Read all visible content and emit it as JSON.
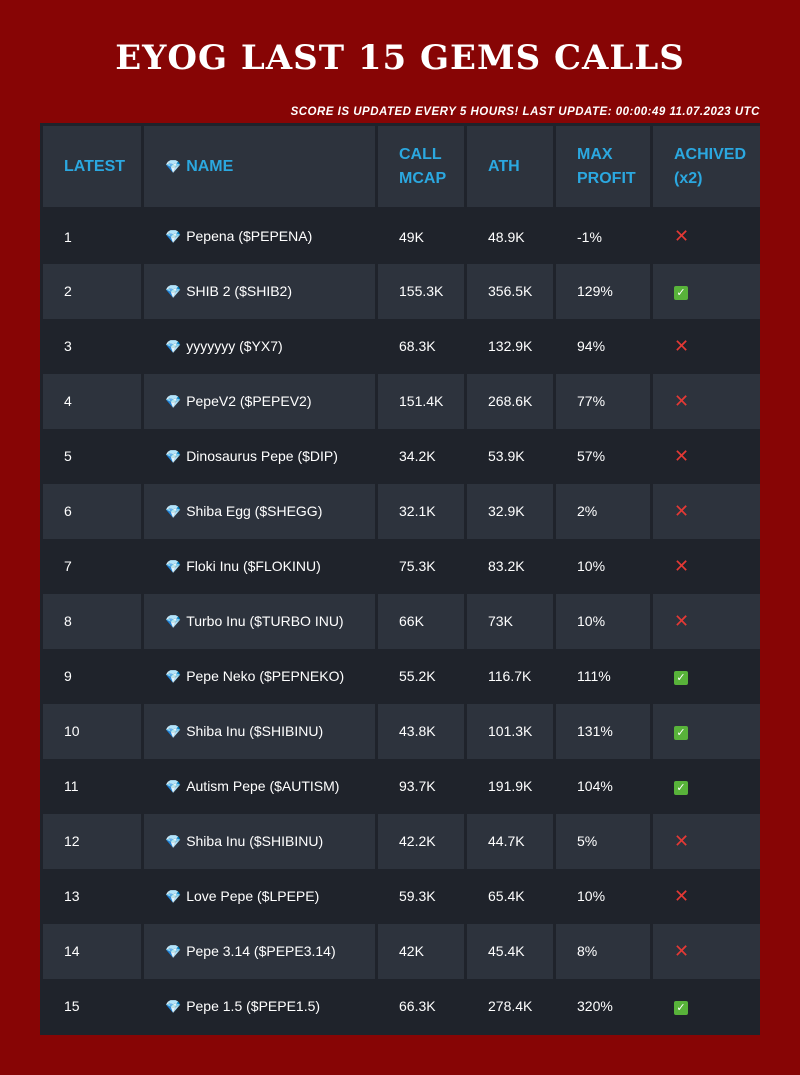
{
  "title": "EYOG LAST 15 GEMS CALLS",
  "subtitle": "SCORE IS UPDATED EVERY 5 HOURS! LAST UPDATE: 00:00:49 11.07.2023 UTC",
  "colors": {
    "background": "#870505",
    "table_dark": "#1f232b",
    "table_light": "#2d333d",
    "header_text": "#2ba8e0",
    "cross": "#e53935",
    "check": "#58b33a"
  },
  "icons": {
    "gem": "gem-icon",
    "achieved_yes": "check-mark-icon",
    "achieved_no": "cross-mark-icon"
  },
  "headers": {
    "latest": "LATEST",
    "name": "NAME",
    "call_mcap": "CALL MCAP",
    "ath": "ATH",
    "max_profit": "MAX PROFIT",
    "achived": "ACHIVED (x2)"
  },
  "rows": [
    {
      "latest": "1",
      "name": "Pepena ($PEPENA)",
      "call_mcap": "49K",
      "ath": "48.9K",
      "max_profit": "-1%",
      "achieved": false
    },
    {
      "latest": "2",
      "name": "SHIB 2 ($SHIB2)",
      "call_mcap": "155.3K",
      "ath": "356.5K",
      "max_profit": "129%",
      "achieved": true
    },
    {
      "latest": "3",
      "name": "yyyyyyy ($YX7)",
      "call_mcap": "68.3K",
      "ath": "132.9K",
      "max_profit": "94%",
      "achieved": false
    },
    {
      "latest": "4",
      "name": "PepeV2 ($PEPEV2)",
      "call_mcap": "151.4K",
      "ath": "268.6K",
      "max_profit": "77%",
      "achieved": false
    },
    {
      "latest": "5",
      "name": "Dinosaurus Pepe ($DIP)",
      "call_mcap": "34.2K",
      "ath": "53.9K",
      "max_profit": "57%",
      "achieved": false
    },
    {
      "latest": "6",
      "name": "Shiba Egg ($SHEGG)",
      "call_mcap": "32.1K",
      "ath": "32.9K",
      "max_profit": "2%",
      "achieved": false
    },
    {
      "latest": "7",
      "name": "Floki Inu ($FLOKINU)",
      "call_mcap": "75.3K",
      "ath": "83.2K",
      "max_profit": "10%",
      "achieved": false
    },
    {
      "latest": "8",
      "name": "Turbo Inu ($TURBO INU)",
      "call_mcap": "66K",
      "ath": "73K",
      "max_profit": "10%",
      "achieved": false
    },
    {
      "latest": "9",
      "name": "Pepe Neko ($PEPNEKO)",
      "call_mcap": "55.2K",
      "ath": "116.7K",
      "max_profit": "111%",
      "achieved": true
    },
    {
      "latest": "10",
      "name": "Shiba Inu ($SHIBINU)",
      "call_mcap": "43.8K",
      "ath": "101.3K",
      "max_profit": "131%",
      "achieved": true
    },
    {
      "latest": "11",
      "name": "Autism Pepe ($AUTISM)",
      "call_mcap": "93.7K",
      "ath": "191.9K",
      "max_profit": "104%",
      "achieved": true
    },
    {
      "latest": "12",
      "name": "Shiba Inu ($SHIBINU)",
      "call_mcap": "42.2K",
      "ath": "44.7K",
      "max_profit": "5%",
      "achieved": false
    },
    {
      "latest": "13",
      "name": "Love Pepe ($LPEPE)",
      "call_mcap": "59.3K",
      "ath": "65.4K",
      "max_profit": "10%",
      "achieved": false
    },
    {
      "latest": "14",
      "name": "Pepe 3.14 ($PEPE3.14)",
      "call_mcap": "42K",
      "ath": "45.4K",
      "max_profit": "8%",
      "achieved": false
    },
    {
      "latest": "15",
      "name": "Pepe 1.5 ($PEPE1.5)",
      "call_mcap": "66.3K",
      "ath": "278.4K",
      "max_profit": "320%",
      "achieved": true
    }
  ]
}
